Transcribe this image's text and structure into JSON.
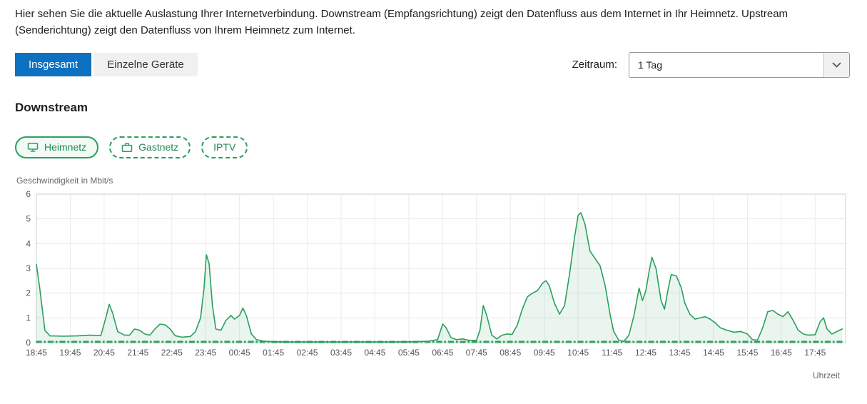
{
  "description": "Hier sehen Sie die aktuelle Auslastung Ihrer Internetverbindung. Downstream (Empfangsrichtung) zeigt den Datenfluss aus dem Internet in Ihr Heimnetz. Upstream (Senderichtung) zeigt den Datenfluss von Ihrem Heimnetz zum Internet.",
  "tabs": [
    {
      "label": "Insgesamt",
      "active": true
    },
    {
      "label": "Einzelne Geräte",
      "active": false
    }
  ],
  "zeitraum": {
    "label": "Zeitraum:",
    "selected": "1 Tag",
    "icon": "chevron-down-icon"
  },
  "section_title": "Downstream",
  "filters": [
    {
      "label": "Heimnetz",
      "style": "solid",
      "icon": "monitor-network-icon"
    },
    {
      "label": "Gastnetz",
      "style": "dashed",
      "icon": "briefcase-icon"
    },
    {
      "label": "IPTV",
      "style": "dashed",
      "icon": null
    }
  ],
  "chart_data": {
    "type": "area",
    "title": "Downstream",
    "ylabel": "Geschwindigkeit in Mbit/s",
    "xlabel": "Uhrzeit",
    "ylim": [
      0,
      6
    ],
    "yticks": [
      0,
      1,
      2,
      3,
      4,
      5,
      6
    ],
    "xlim": [
      0,
      23.9
    ],
    "x_unit": "hours_from_start",
    "xtick_labels": [
      "18:45",
      "19:45",
      "20:45",
      "21:45",
      "22:45",
      "23:45",
      "00:45",
      "01:45",
      "02:45",
      "03:45",
      "04:45",
      "05:45",
      "06:45",
      "07:45",
      "08:45",
      "09:45",
      "10:45",
      "11:45",
      "12:45",
      "13:45",
      "14:45",
      "15:45",
      "16:45",
      "17:45"
    ],
    "grid": true,
    "colors": {
      "line": "#2aa05c",
      "fill": "rgba(42,160,92,0.10)",
      "grid": "#e6e6e6",
      "axis": "#cfcfcf",
      "tick_text": "#555555"
    },
    "series": [
      {
        "name": "Heimnetz",
        "style": "solid",
        "fill": true,
        "points": [
          [
            0,
            3.15
          ],
          [
            0.1,
            2.2
          ],
          [
            0.25,
            0.5
          ],
          [
            0.4,
            0.27
          ],
          [
            0.8,
            0.26
          ],
          [
            1.2,
            0.27
          ],
          [
            1.6,
            0.3
          ],
          [
            1.9,
            0.28
          ],
          [
            2.05,
            1.0
          ],
          [
            2.15,
            1.55
          ],
          [
            2.25,
            1.2
          ],
          [
            2.4,
            0.45
          ],
          [
            2.6,
            0.3
          ],
          [
            2.75,
            0.3
          ],
          [
            2.9,
            0.55
          ],
          [
            3.05,
            0.5
          ],
          [
            3.2,
            0.35
          ],
          [
            3.35,
            0.3
          ],
          [
            3.5,
            0.55
          ],
          [
            3.65,
            0.75
          ],
          [
            3.8,
            0.72
          ],
          [
            3.95,
            0.55
          ],
          [
            4.1,
            0.28
          ],
          [
            4.3,
            0.22
          ],
          [
            4.55,
            0.25
          ],
          [
            4.7,
            0.45
          ],
          [
            4.85,
            1.0
          ],
          [
            4.95,
            2.2
          ],
          [
            5.02,
            3.55
          ],
          [
            5.1,
            3.2
          ],
          [
            5.2,
            1.5
          ],
          [
            5.3,
            0.55
          ],
          [
            5.45,
            0.5
          ],
          [
            5.6,
            0.9
          ],
          [
            5.75,
            1.1
          ],
          [
            5.85,
            0.95
          ],
          [
            6.0,
            1.1
          ],
          [
            6.1,
            1.4
          ],
          [
            6.2,
            1.1
          ],
          [
            6.35,
            0.35
          ],
          [
            6.5,
            0.12
          ],
          [
            6.7,
            0.06
          ],
          [
            7.0,
            0.04
          ],
          [
            7.5,
            0.03
          ],
          [
            8.5,
            0.03
          ],
          [
            9.5,
            0.03
          ],
          [
            10.5,
            0.03
          ],
          [
            11.2,
            0.04
          ],
          [
            11.6,
            0.06
          ],
          [
            11.85,
            0.12
          ],
          [
            12.0,
            0.75
          ],
          [
            12.1,
            0.6
          ],
          [
            12.25,
            0.2
          ],
          [
            12.4,
            0.12
          ],
          [
            12.6,
            0.15
          ],
          [
            12.8,
            0.08
          ],
          [
            13.0,
            0.1
          ],
          [
            13.1,
            0.5
          ],
          [
            13.2,
            1.5
          ],
          [
            13.3,
            1.1
          ],
          [
            13.45,
            0.3
          ],
          [
            13.6,
            0.15
          ],
          [
            13.75,
            0.3
          ],
          [
            13.9,
            0.35
          ],
          [
            14.05,
            0.33
          ],
          [
            14.2,
            0.7
          ],
          [
            14.35,
            1.35
          ],
          [
            14.5,
            1.85
          ],
          [
            14.65,
            2.0
          ],
          [
            14.8,
            2.1
          ],
          [
            14.95,
            2.4
          ],
          [
            15.05,
            2.5
          ],
          [
            15.15,
            2.3
          ],
          [
            15.3,
            1.6
          ],
          [
            15.45,
            1.15
          ],
          [
            15.6,
            1.5
          ],
          [
            15.75,
            2.8
          ],
          [
            15.9,
            4.3
          ],
          [
            16.0,
            5.15
          ],
          [
            16.08,
            5.25
          ],
          [
            16.2,
            4.8
          ],
          [
            16.35,
            3.7
          ],
          [
            16.5,
            3.4
          ],
          [
            16.65,
            3.1
          ],
          [
            16.8,
            2.3
          ],
          [
            16.95,
            1.1
          ],
          [
            17.05,
            0.45
          ],
          [
            17.2,
            0.1
          ],
          [
            17.35,
            0.05
          ],
          [
            17.5,
            0.3
          ],
          [
            17.65,
            1.1
          ],
          [
            17.8,
            2.2
          ],
          [
            17.9,
            1.7
          ],
          [
            18.0,
            2.1
          ],
          [
            18.1,
            2.9
          ],
          [
            18.18,
            3.45
          ],
          [
            18.3,
            3.0
          ],
          [
            18.45,
            1.7
          ],
          [
            18.55,
            1.35
          ],
          [
            18.65,
            2.1
          ],
          [
            18.75,
            2.75
          ],
          [
            18.9,
            2.7
          ],
          [
            19.05,
            2.2
          ],
          [
            19.15,
            1.6
          ],
          [
            19.3,
            1.15
          ],
          [
            19.45,
            0.95
          ],
          [
            19.6,
            1.0
          ],
          [
            19.75,
            1.05
          ],
          [
            19.9,
            0.95
          ],
          [
            20.05,
            0.8
          ],
          [
            20.2,
            0.6
          ],
          [
            20.4,
            0.5
          ],
          [
            20.6,
            0.42
          ],
          [
            20.8,
            0.45
          ],
          [
            21.0,
            0.35
          ],
          [
            21.15,
            0.12
          ],
          [
            21.3,
            0.1
          ],
          [
            21.45,
            0.6
          ],
          [
            21.6,
            1.25
          ],
          [
            21.75,
            1.3
          ],
          [
            21.9,
            1.15
          ],
          [
            22.05,
            1.05
          ],
          [
            22.2,
            1.25
          ],
          [
            22.35,
            0.9
          ],
          [
            22.5,
            0.5
          ],
          [
            22.65,
            0.35
          ],
          [
            22.8,
            0.3
          ],
          [
            23.0,
            0.32
          ],
          [
            23.15,
            0.85
          ],
          [
            23.25,
            1.0
          ],
          [
            23.35,
            0.55
          ],
          [
            23.5,
            0.35
          ],
          [
            23.65,
            0.45
          ],
          [
            23.8,
            0.55
          ]
        ]
      },
      {
        "name": "Gastnetz",
        "style": "dashdot",
        "fill": false,
        "points": [
          [
            0,
            0.05
          ],
          [
            23.8,
            0.05
          ]
        ]
      },
      {
        "name": "IPTV",
        "style": "dashdot",
        "fill": false,
        "points": [
          [
            0,
            0.0
          ],
          [
            23.8,
            0.0
          ]
        ]
      }
    ]
  }
}
